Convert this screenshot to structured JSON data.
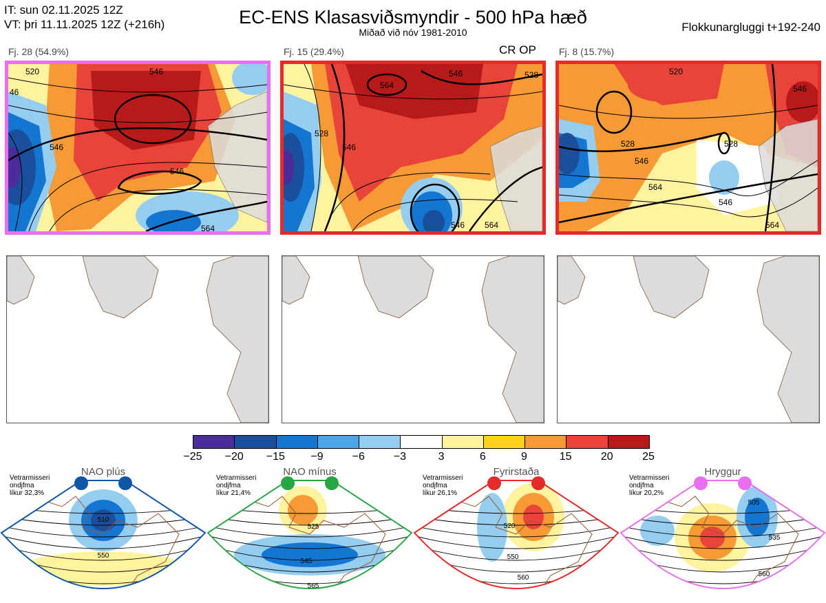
{
  "header": {
    "it_line": "IT: sun 02.11.2025 12Z",
    "vt_line": "VT: þri 11.11.2025 12Z  (+216h)",
    "title": "EC-ENS Klasasviðsmyndir - 500 hPa hæð",
    "subtitle": "Miðað við nóv 1981-2010",
    "window": "Flokkunargluggi t+192-240"
  },
  "clusters": [
    {
      "label": "Fj. 28 (54.9%)",
      "flag": "",
      "border_color": "#ea6ff0",
      "contour_labels": [
        "520",
        "546",
        "546",
        "546",
        "564",
        "46"
      ]
    },
    {
      "label": "Fj. 15 (29.4%)",
      "flag": "CR OP",
      "border_color": "#e52a2a",
      "contour_labels": [
        "564",
        "546",
        "528",
        "546",
        "546",
        "564",
        "528"
      ]
    },
    {
      "label": "Fj. 8 (15.7%)",
      "flag": "",
      "border_color": "#e52a2a",
      "contour_labels": [
        "520",
        "546",
        "528",
        "528",
        "546",
        "564",
        "546",
        "564"
      ]
    }
  ],
  "colorbar": {
    "ticks": [
      "−25",
      "−20",
      "−15",
      "−9",
      "−6",
      "−3",
      "3",
      "6",
      "9",
      "15",
      "20",
      "25"
    ],
    "colors": [
      "#8b4a9c",
      "#4a2c9a",
      "#1b4f9c",
      "#1476d0",
      "#4ca6e8",
      "#94cdf0",
      "#ffffff",
      "#fff3a0",
      "#ffd21e",
      "#f59a34",
      "#e8443a",
      "#b81a1a"
    ]
  },
  "regimes": [
    {
      "name": "NAO plús",
      "info": [
        "Vetrarmisseri",
        "ondjfma",
        "líkur 32,3%"
      ],
      "color": "#0e56a8",
      "labels": [
        "510",
        "550"
      ]
    },
    {
      "name": "NAO mínus",
      "info": [
        "Vetrarmisseri",
        "ondjfma",
        "líkur 21,4%"
      ],
      "color": "#27a744",
      "labels": [
        "525",
        "545",
        "565"
      ]
    },
    {
      "name": "Fyrirstaða",
      "info": [
        "Vetrarmisseri",
        "ondjfma",
        "líkur 26,1%"
      ],
      "color": "#e52a2a",
      "labels": [
        "520",
        "550",
        "560"
      ]
    },
    {
      "name": "Hryggur",
      "info": [
        "Vetrarmisseri",
        "ondjfma",
        "líkur 20,2%"
      ],
      "color": "#ea6ff0",
      "labels": [
        "505",
        "535",
        "560"
      ]
    }
  ]
}
